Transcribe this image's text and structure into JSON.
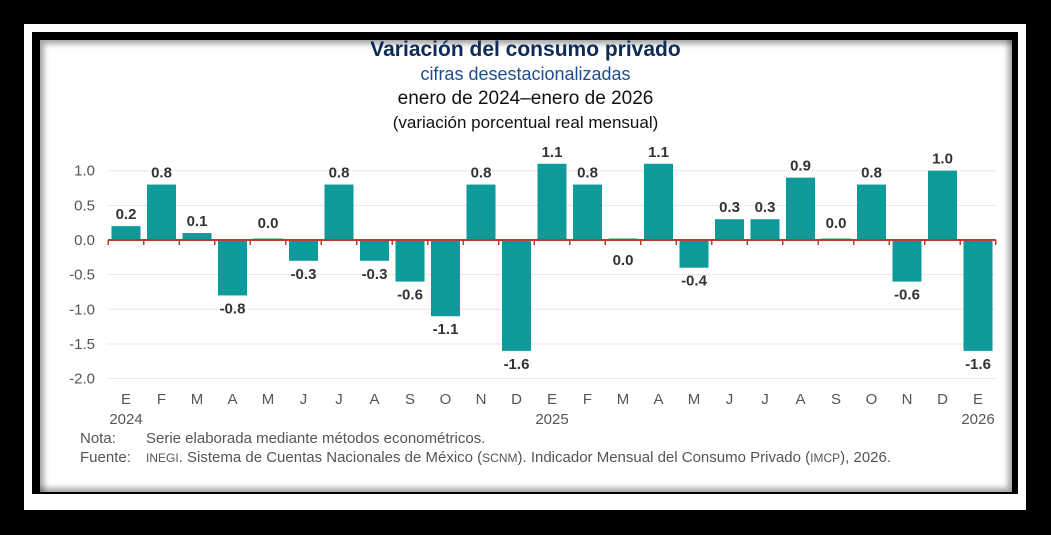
{
  "chart_data": {
    "type": "bar",
    "title": "Variación del consumo privado",
    "subtitle": "cifras desestacionalizadas",
    "period": "enero de 2024–enero de 2026",
    "ylabel": "(variación porcentual real mensual)",
    "ylim": [
      -2.0,
      1.0
    ],
    "yticks": [
      "1.0",
      "0.5",
      "0.0",
      "-0.5",
      "-1.0",
      "-1.5",
      "-2.0"
    ],
    "categories": [
      "E",
      "F",
      "M",
      "A",
      "M",
      "J",
      "J",
      "A",
      "S",
      "O",
      "N",
      "D",
      "E",
      "F",
      "M",
      "A",
      "M",
      "J",
      "J",
      "A",
      "S",
      "O",
      "N",
      "D",
      "E"
    ],
    "years": [
      {
        "index": 0,
        "label": "2024"
      },
      {
        "index": 12,
        "label": "2025"
      },
      {
        "index": 24,
        "label": "2026"
      }
    ],
    "values": [
      0.2,
      0.8,
      0.1,
      -0.8,
      0.0,
      -0.3,
      0.8,
      -0.3,
      -0.6,
      -1.1,
      0.8,
      -1.6,
      1.1,
      0.8,
      0.0,
      1.1,
      -0.4,
      0.3,
      0.3,
      0.9,
      0.0,
      0.8,
      -0.6,
      1.0,
      -1.6
    ],
    "labels": [
      "0.2",
      "0.8",
      "0.1",
      "-0.8",
      "0.0",
      "-0.3",
      "0.8",
      "-0.3",
      "-0.6",
      "-1.1",
      "0.8",
      "-1.6",
      "1.1",
      "0.8",
      "0.0",
      "1.1",
      "-0.4",
      "0.3",
      "0.3",
      "0.9",
      "0.0",
      "0.8",
      "-0.6",
      "1.0",
      "-1.6"
    ],
    "grid": true,
    "colors": {
      "bar": "#0e9a9a",
      "zero_line": "#c0392b",
      "title": "#0d2b57",
      "subtitle": "#1f4e8c"
    }
  },
  "notes": {
    "nota_label": "Nota:",
    "nota_text": "Serie elaborada mediante métodos econométricos.",
    "fuente_label": "Fuente:",
    "fuente_1": "INEGI",
    "fuente_2": ". Sistema de Cuentas Nacionales de México (",
    "fuente_3": "SCNM",
    "fuente_4": "). Indicador Mensual del Consumo Privado (",
    "fuente_5": "IMCP",
    "fuente_6": "), 2026."
  }
}
